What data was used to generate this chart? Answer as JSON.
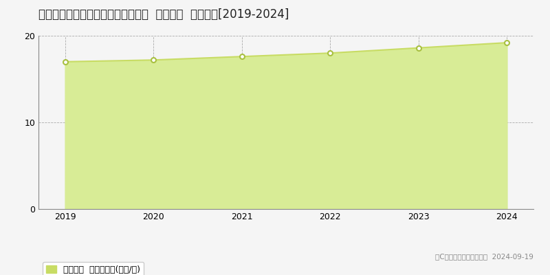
{
  "title": "福岡県那珂川市西隈２丁目４６番８  基準地価  地価推移[2019-2024]",
  "years": [
    2019,
    2020,
    2021,
    2022,
    2023,
    2024
  ],
  "values": [
    17.0,
    17.2,
    17.6,
    18.0,
    18.6,
    19.2
  ],
  "ylim": [
    0,
    20
  ],
  "yticks": [
    0,
    10,
    20
  ],
  "line_color": "#c8dc64",
  "fill_color": "#d8ec96",
  "marker_facecolor": "#ffffff",
  "marker_edgecolor": "#a8c040",
  "background_color": "#f5f5f5",
  "plot_bg_color": "#f5f5f5",
  "grid_color": "#aaaaaa",
  "legend_label": "基準地価  平均坪単価(万円/坪)",
  "legend_patch_color": "#c8dc64",
  "copyright_text": "（C）土地価格ドットコム  2024-09-19",
  "title_fontsize": 12,
  "tick_fontsize": 9,
  "legend_fontsize": 9
}
